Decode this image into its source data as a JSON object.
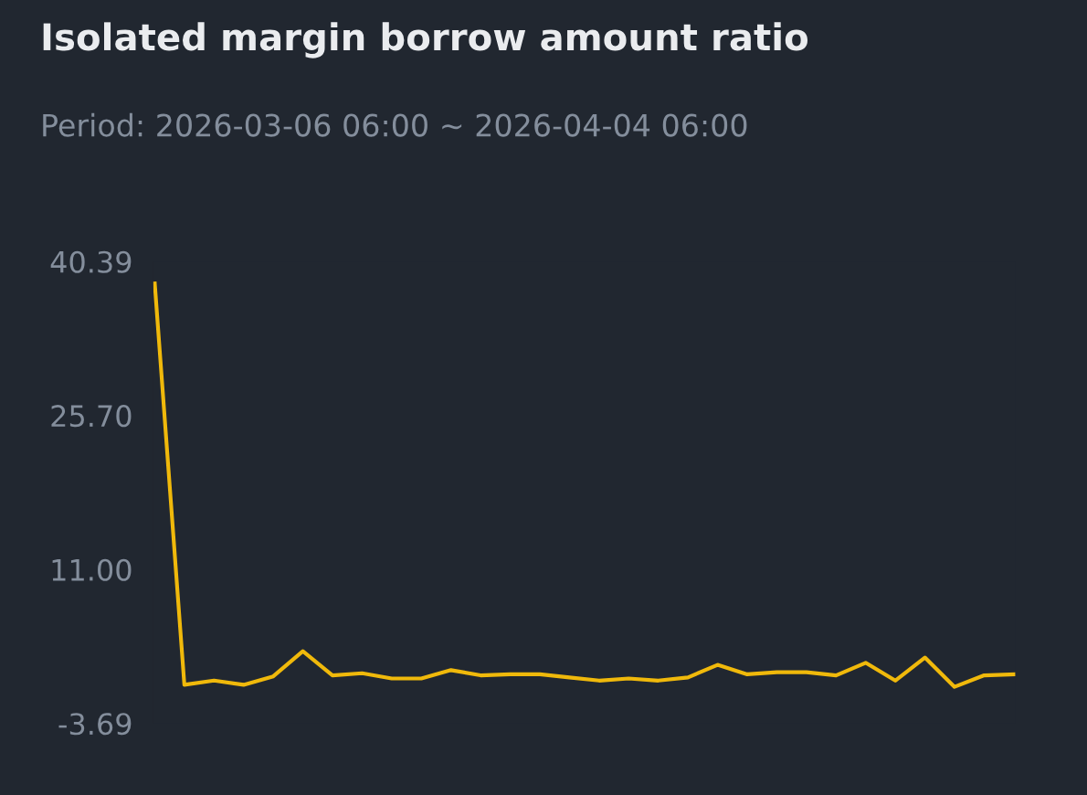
{
  "chart_data": {
    "type": "line",
    "title": "Isolated margin borrow amount ratio",
    "subtitle": "Period: 2026-03-06 06:00 ~ 2026-04-04 06:00",
    "categories": [
      null,
      null,
      null,
      null,
      null,
      null,
      null,
      null,
      null,
      null,
      null,
      null,
      null,
      null,
      null,
      null,
      null,
      null,
      null,
      null,
      null,
      null,
      null,
      null,
      null,
      null,
      null,
      null,
      null,
      null
    ],
    "series": [
      {
        "color": "#f0b90b",
        "values": [
          38.3,
          0.0,
          0.4,
          0.0,
          0.8,
          3.2,
          0.9,
          1.1,
          0.6,
          0.6,
          1.4,
          0.9,
          1.0,
          1.0,
          0.7,
          0.4,
          0.6,
          0.4,
          0.7,
          1.9,
          1.0,
          1.2,
          1.2,
          0.9,
          2.1,
          0.4,
          2.6,
          -0.2,
          0.9,
          1.0
        ]
      }
    ],
    "ylim": [
      -3.69,
      40.39
    ],
    "yticks": [
      -3.69,
      {
        "value": 11.0,
        "label": "11.00"
      },
      {
        "value": 25.7,
        "label": "25.70"
      },
      40.39
    ],
    "tick_labels": "y",
    "grid": false,
    "marker": "none",
    "line_style": "solid"
  }
}
